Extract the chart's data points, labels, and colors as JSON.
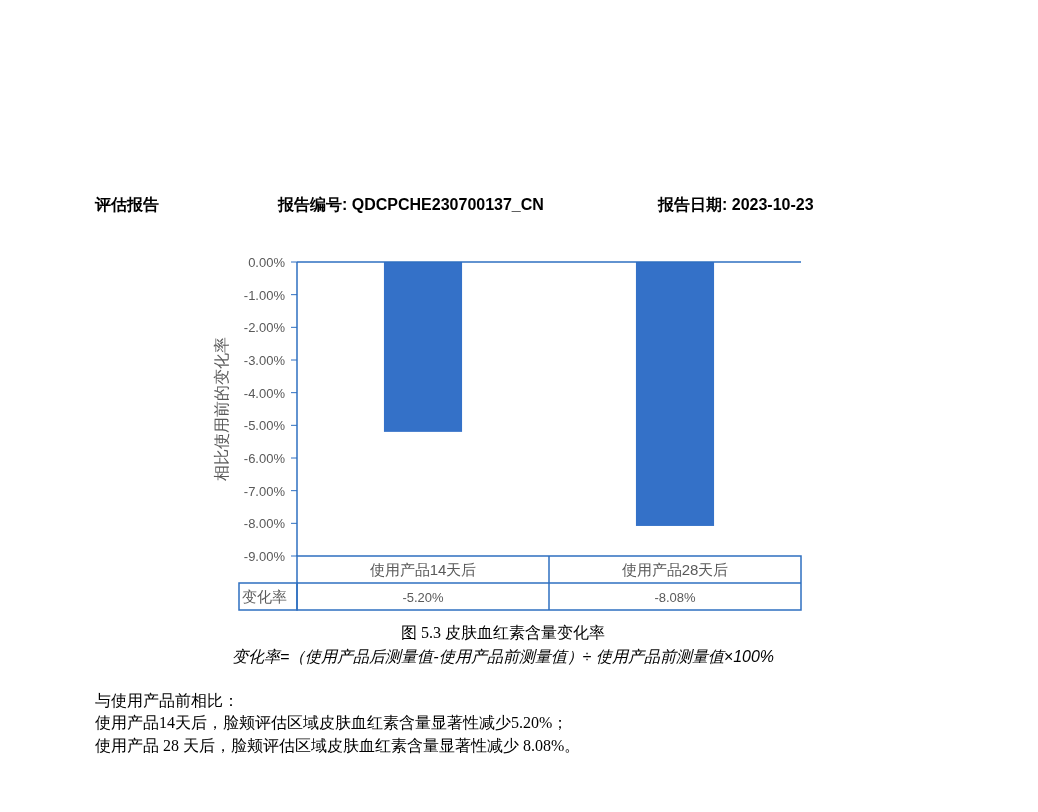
{
  "chart_data": {
    "type": "bar",
    "title": "图 5.3 皮肤血红素含量变化率",
    "ylabel": "相比使用前的变化率",
    "categories": [
      "使用产品14天后",
      "使用产品28天后"
    ],
    "values": [
      -5.2,
      -8.08
    ],
    "value_labels": [
      "-5.20%",
      "-8.08%"
    ],
    "color": "#3471c8",
    "ylim": [
      -9,
      0
    ],
    "yticks": [
      {
        "value": 0,
        "label": "0.00%"
      },
      {
        "value": -1,
        "label": "-1.00%"
      },
      {
        "value": -2,
        "label": "-2.00%"
      },
      {
        "value": -3,
        "label": "-3.00%"
      },
      {
        "value": -4,
        "label": "-4.00%"
      },
      {
        "value": -5,
        "label": "-5.00%"
      },
      {
        "value": -6,
        "label": "-6.00%"
      },
      {
        "value": -7,
        "label": "-7.00%"
      },
      {
        "value": -8,
        "label": "-8.00%"
      },
      {
        "value": -9,
        "label": "-9.00%"
      }
    ],
    "annotations": [
      "评估报告",
      "报告编号: QDCPCHE230700137_CN",
      "报告日期: 2023-10-23",
      "变化率",
      "变化率=（使用产品后测量值-使用产品前测量值）÷ 使用产品前测量值×100%",
      "与使用产品前相比：",
      "使用产品14天后，脸颊评估区域皮肤血红素含量显著性减少5.20%；",
      "使用产品 28 天后，脸颊评估区域皮肤血红素含量显著性减少 8.08%。"
    ]
  }
}
